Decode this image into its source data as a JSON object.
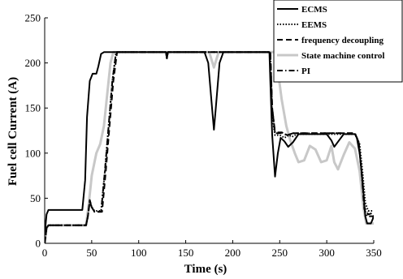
{
  "chart_data": {
    "type": "line",
    "xlabel": "Time (s)",
    "ylabel": "Fuel cell Current (A)",
    "xlim": [
      0,
      350
    ],
    "ylim": [
      0,
      250
    ],
    "xticks": [
      0,
      50,
      100,
      150,
      200,
      250,
      300,
      350
    ],
    "yticks": [
      0,
      50,
      100,
      150,
      200,
      250
    ],
    "grid": false,
    "legend_position": "top-right",
    "series": [
      {
        "name": "ECMS",
        "style": "solid",
        "color": "#000000",
        "points": [
          [
            0,
            10
          ],
          [
            2,
            32
          ],
          [
            4,
            37
          ],
          [
            40,
            37
          ],
          [
            43,
            70
          ],
          [
            45,
            140
          ],
          [
            48,
            180
          ],
          [
            51,
            188
          ],
          [
            55,
            188
          ],
          [
            57,
            196
          ],
          [
            60,
            210
          ],
          [
            63,
            212
          ],
          [
            129,
            212
          ],
          [
            130,
            205
          ],
          [
            131,
            212
          ],
          [
            170,
            212
          ],
          [
            174,
            200
          ],
          [
            178,
            150
          ],
          [
            180,
            126
          ],
          [
            182,
            150
          ],
          [
            186,
            200
          ],
          [
            190,
            212
          ],
          [
            239,
            212
          ],
          [
            240,
            180
          ],
          [
            242,
            120
          ],
          [
            245,
            74
          ],
          [
            248,
            100
          ],
          [
            251,
            117
          ],
          [
            255,
            113
          ],
          [
            259,
            107
          ],
          [
            264,
            112
          ],
          [
            270,
            121
          ],
          [
            300,
            121
          ],
          [
            305,
            114
          ],
          [
            308,
            107
          ],
          [
            313,
            114
          ],
          [
            318,
            121
          ],
          [
            330,
            121
          ],
          [
            332,
            117
          ],
          [
            335,
            100
          ],
          [
            338,
            70
          ],
          [
            341,
            30
          ],
          [
            343,
            22
          ],
          [
            347,
            22
          ],
          [
            349,
            27
          ],
          [
            350,
            31
          ]
        ]
      },
      {
        "name": "EEMS",
        "style": "dotted",
        "color": "#000000",
        "points": [
          [
            0,
            0
          ],
          [
            2,
            17
          ],
          [
            4,
            20
          ],
          [
            44,
            20
          ],
          [
            46,
            30
          ],
          [
            48,
            47
          ],
          [
            50,
            40
          ],
          [
            53,
            36
          ],
          [
            60,
            36
          ],
          [
            64,
            80
          ],
          [
            68,
            130
          ],
          [
            72,
            180
          ],
          [
            76,
            212
          ],
          [
            129,
            212
          ],
          [
            130,
            205
          ],
          [
            131,
            212
          ],
          [
            240,
            212
          ],
          [
            242,
            140
          ],
          [
            245,
            120
          ],
          [
            250,
            120
          ],
          [
            255,
            117
          ],
          [
            260,
            120
          ],
          [
            263,
            118
          ],
          [
            268,
            121
          ],
          [
            300,
            121
          ],
          [
            310,
            121
          ],
          [
            320,
            121
          ],
          [
            330,
            121
          ],
          [
            335,
            110
          ],
          [
            338,
            80
          ],
          [
            341,
            45
          ],
          [
            344,
            36
          ],
          [
            347,
            36
          ],
          [
            350,
            36
          ]
        ]
      },
      {
        "name": "frequency decoupling",
        "style": "dashed",
        "color": "#000000",
        "points": [
          [
            0,
            0
          ],
          [
            2,
            17
          ],
          [
            4,
            20
          ],
          [
            44,
            20
          ],
          [
            46,
            30
          ],
          [
            48,
            48
          ],
          [
            50,
            40
          ],
          [
            53,
            35
          ],
          [
            61,
            35
          ],
          [
            65,
            80
          ],
          [
            69,
            130
          ],
          [
            73,
            180
          ],
          [
            77,
            212
          ],
          [
            129,
            212
          ],
          [
            130,
            205
          ],
          [
            131,
            212
          ],
          [
            240,
            212
          ],
          [
            242,
            150
          ],
          [
            245,
            122
          ],
          [
            252,
            122
          ],
          [
            258,
            120
          ],
          [
            264,
            122
          ],
          [
            300,
            122
          ],
          [
            330,
            122
          ],
          [
            334,
            112
          ],
          [
            337,
            80
          ],
          [
            340,
            40
          ],
          [
            344,
            32
          ],
          [
            347,
            33
          ],
          [
            350,
            34
          ]
        ]
      },
      {
        "name": "State machine control",
        "style": "solid",
        "color": "#c8c8c8",
        "points": [
          [
            0,
            0
          ],
          [
            2,
            17
          ],
          [
            4,
            20
          ],
          [
            44,
            20
          ],
          [
            47,
            45
          ],
          [
            50,
            75
          ],
          [
            55,
            100
          ],
          [
            59,
            110
          ],
          [
            63,
            130
          ],
          [
            67,
            170
          ],
          [
            70,
            200
          ],
          [
            73,
            212
          ],
          [
            175,
            212
          ],
          [
            180,
            195
          ],
          [
            185,
            212
          ],
          [
            245,
            212
          ],
          [
            247,
            200
          ],
          [
            252,
            160
          ],
          [
            257,
            130
          ],
          [
            261,
            115
          ],
          [
            266,
            100
          ],
          [
            270,
            90
          ],
          [
            276,
            92
          ],
          [
            282,
            108
          ],
          [
            288,
            104
          ],
          [
            294,
            90
          ],
          [
            300,
            92
          ],
          [
            305,
            108
          ],
          [
            308,
            90
          ],
          [
            312,
            82
          ],
          [
            318,
            98
          ],
          [
            324,
            112
          ],
          [
            330,
            105
          ],
          [
            335,
            80
          ],
          [
            339,
            40
          ],
          [
            342,
            22
          ],
          [
            350,
            22
          ]
        ]
      },
      {
        "name": "PI",
        "style": "dashdot",
        "color": "#000000",
        "points": [
          [
            0,
            0
          ],
          [
            2,
            17
          ],
          [
            4,
            20
          ],
          [
            44,
            20
          ],
          [
            46,
            30
          ],
          [
            48,
            46
          ],
          [
            50,
            40
          ],
          [
            53,
            35
          ],
          [
            60,
            35
          ],
          [
            64,
            80
          ],
          [
            68,
            130
          ],
          [
            72,
            180
          ],
          [
            76,
            212
          ],
          [
            129,
            212
          ],
          [
            130,
            205
          ],
          [
            131,
            212
          ],
          [
            240,
            212
          ],
          [
            242,
            150
          ],
          [
            245,
            123
          ],
          [
            252,
            123
          ],
          [
            258,
            120
          ],
          [
            264,
            122
          ],
          [
            300,
            122
          ],
          [
            330,
            122
          ],
          [
            334,
            112
          ],
          [
            337,
            78
          ],
          [
            340,
            38
          ],
          [
            343,
            30
          ],
          [
            347,
            30
          ],
          [
            350,
            30
          ]
        ]
      }
    ]
  }
}
